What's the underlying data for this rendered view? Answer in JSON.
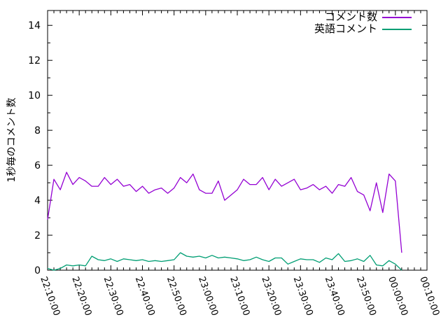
{
  "chart_data": {
    "type": "line",
    "title": "",
    "ylabel": "1秒毎のコメント数",
    "grid": false,
    "x_axis": {
      "start_time": "22:10:00",
      "end_time": "00:10:00",
      "tick_labels": [
        "22:10:00",
        "22:20:00",
        "22:30:00",
        "22:40:00",
        "22:50:00",
        "23:00:00",
        "23:10:00",
        "23:20:00",
        "23:30:00",
        "23:40:00",
        "23:50:00",
        "00:00:00",
        "00:10:00"
      ],
      "major_interval_minutes": 10,
      "minor_interval_minutes": 2,
      "range_minutes": [
        0,
        120
      ]
    },
    "y_axis": {
      "ticks": [
        "0",
        "2",
        "4",
        "6",
        "8",
        "10",
        "12",
        "14"
      ],
      "tick_values": [
        0,
        2,
        4,
        6,
        8,
        10,
        12,
        14
      ],
      "minor_tick_values": [
        1,
        3,
        5,
        7,
        9,
        11,
        13
      ],
      "range": [
        0,
        14.85
      ]
    },
    "legend": {
      "position": "top-right-inside",
      "entries": [
        {
          "label": "コメント数",
          "color": "#9400d3"
        },
        {
          "label": "英語コメント",
          "color": "#009e73"
        }
      ]
    },
    "series": [
      {
        "name": "コメント数",
        "color": "#9400d3",
        "x_minutes_after_start": [
          0,
          2,
          4,
          6,
          8,
          10,
          12,
          14,
          16,
          18,
          20,
          22,
          24,
          26,
          28,
          30,
          32,
          34,
          36,
          38,
          40,
          42,
          44,
          46,
          48,
          50,
          52,
          54,
          56,
          58,
          60,
          62,
          64,
          66,
          68,
          70,
          72,
          74,
          76,
          78,
          80,
          82,
          84,
          86,
          88,
          90,
          92,
          94,
          96,
          98,
          100,
          102,
          104,
          106,
          108,
          110,
          112
        ],
        "values": [
          2.9,
          5.2,
          4.6,
          5.6,
          4.9,
          5.3,
          5.1,
          4.8,
          4.8,
          5.3,
          4.9,
          5.2,
          4.8,
          4.9,
          4.5,
          4.8,
          4.4,
          4.6,
          4.7,
          4.4,
          4.7,
          5.3,
          5.0,
          5.5,
          4.6,
          4.4,
          4.4,
          5.1,
          4.0,
          4.3,
          4.6,
          5.2,
          4.9,
          4.9,
          5.3,
          4.6,
          5.2,
          4.8,
          5.0,
          5.2,
          4.6,
          4.7,
          4.9,
          4.6,
          4.8,
          4.4,
          4.9,
          4.8,
          5.3,
          4.5,
          4.3,
          3.4,
          5.0,
          3.3,
          5.5,
          5.1,
          1.0
        ]
      },
      {
        "name": "英語コメント",
        "color": "#009e73",
        "x_minutes_after_start": [
          0,
          2,
          4,
          6,
          8,
          10,
          12,
          14,
          16,
          18,
          20,
          22,
          24,
          26,
          28,
          30,
          32,
          34,
          36,
          38,
          40,
          42,
          44,
          46,
          48,
          50,
          52,
          54,
          56,
          58,
          60,
          62,
          64,
          66,
          68,
          70,
          72,
          74,
          76,
          78,
          80,
          82,
          84,
          86,
          88,
          90,
          92,
          94,
          96,
          98,
          100,
          102,
          104,
          106,
          108,
          110,
          112
        ],
        "values": [
          0.1,
          0.0,
          0.1,
          0.3,
          0.25,
          0.3,
          0.25,
          0.8,
          0.6,
          0.55,
          0.65,
          0.5,
          0.65,
          0.6,
          0.55,
          0.6,
          0.5,
          0.55,
          0.5,
          0.55,
          0.6,
          1.0,
          0.8,
          0.75,
          0.8,
          0.7,
          0.85,
          0.7,
          0.75,
          0.7,
          0.65,
          0.55,
          0.6,
          0.75,
          0.6,
          0.5,
          0.7,
          0.7,
          0.35,
          0.5,
          0.65,
          0.6,
          0.6,
          0.45,
          0.7,
          0.6,
          0.95,
          0.5,
          0.55,
          0.65,
          0.5,
          0.85,
          0.3,
          0.25,
          0.55,
          0.35,
          0.0
        ]
      }
    ]
  },
  "colors": {
    "series_comments": "#9400d3",
    "series_english_comments": "#009e73",
    "axis": "#000000",
    "background": "#ffffff",
    "text": "#000000"
  }
}
